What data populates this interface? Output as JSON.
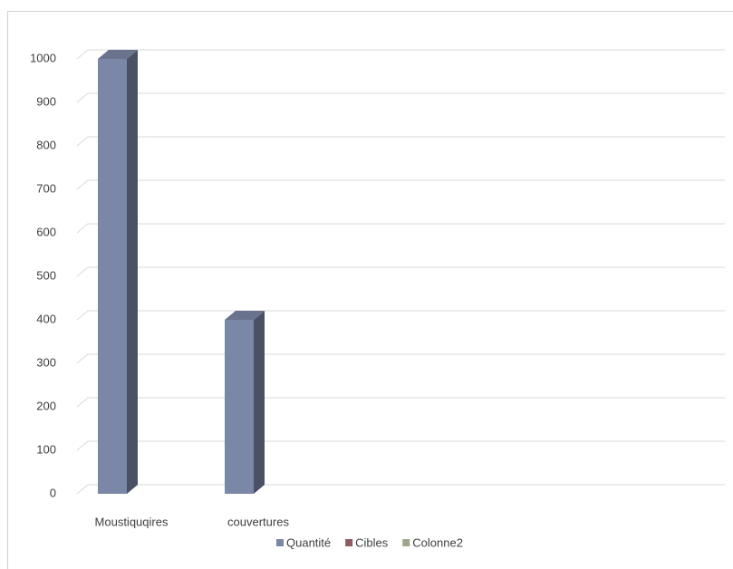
{
  "chart_data": {
    "type": "bar3d",
    "categories": [
      "Moustiquqires",
      "couvertures"
    ],
    "series": [
      {
        "name": "Quantité",
        "color": "#7b87a6",
        "values": [
          1000,
          400
        ]
      },
      {
        "name": "Cibles",
        "color": "#8e5b63",
        "values": [
          null,
          null
        ]
      },
      {
        "name": "Colonne2",
        "color": "#9ca68c",
        "values": [
          null,
          null
        ]
      }
    ],
    "ylim": [
      0,
      1000
    ],
    "yticks": [
      0,
      100,
      200,
      300,
      400,
      500,
      600,
      700,
      800,
      900,
      1000
    ],
    "grid": true,
    "legend": "bottom"
  }
}
